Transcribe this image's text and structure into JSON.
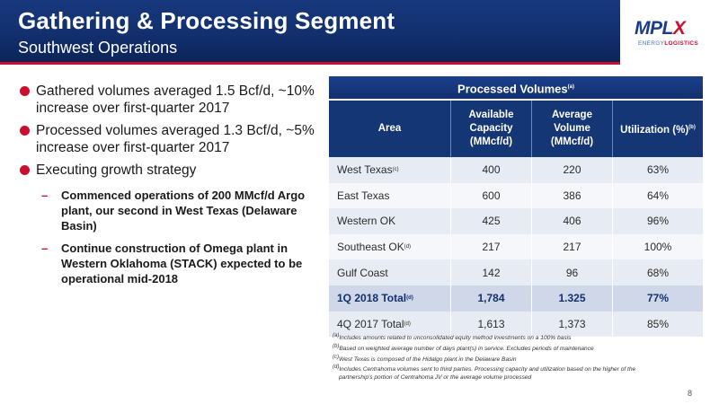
{
  "header": {
    "title": "Gathering & Processing Segment",
    "subtitle": "Southwest Operations",
    "logo": {
      "word_main": "MPL",
      "word_x": "X",
      "sub_light": "ENERGY",
      "sub_bold": "LOGISTICS"
    }
  },
  "bullets": [
    {
      "text": "Gathered volumes averaged 1.5 Bcf/d, ~10% increase over first-quarter 2017"
    },
    {
      "text": "Processed volumes averaged 1.3 Bcf/d, ~5% increase over first-quarter 2017"
    },
    {
      "text": "Executing growth strategy"
    }
  ],
  "sub_bullets": [
    {
      "text": "Commenced operations of 200 MMcf/d Argo plant, our second in West Texas (Delaware Basin)"
    },
    {
      "text": "Continue construction of Omega plant in Western Oklahoma (STACK) expected to be operational mid-2018"
    }
  ],
  "table": {
    "title": "Processed Volumes",
    "title_note": "(a)",
    "headers": [
      {
        "label": "Area",
        "note": ""
      },
      {
        "label": "Available Capacity (MMcf/d)",
        "note": ""
      },
      {
        "label": "Average Volume (MMcf/d)",
        "note": ""
      },
      {
        "label": "Utilization (%)",
        "note": "(b)"
      }
    ],
    "rows": [
      {
        "area": "West Texas",
        "note": "(c)",
        "capacity": "400",
        "volume": "220",
        "utilization": "63%"
      },
      {
        "area": "East Texas",
        "note": "",
        "capacity": "600",
        "volume": "386",
        "utilization": "64%"
      },
      {
        "area": "Western OK",
        "note": "",
        "capacity": "425",
        "volume": "406",
        "utilization": "96%"
      },
      {
        "area": "Southeast OK",
        "note": "(d)",
        "capacity": "217",
        "volume": "217",
        "utilization": "100%"
      },
      {
        "area": "Gulf Coast",
        "note": "",
        "capacity": "142",
        "volume": "96",
        "utilization": "68%"
      },
      {
        "area": "1Q 2018 Total",
        "note": "(d)",
        "capacity": "1,784",
        "volume": "1.325",
        "utilization": "77%"
      },
      {
        "area": "4Q 2017 Total",
        "note": "(d)",
        "capacity": "1,613",
        "volume": "1,373",
        "utilization": "85%"
      }
    ]
  },
  "footnotes": [
    {
      "mark": "(a)",
      "text": "Includes amounts related to unconsolidated equity method investments on a 100% basis"
    },
    {
      "mark": "(b)",
      "text": "Based on weighted average number of days plant(s) in service.  Excludes periods of maintenance"
    },
    {
      "mark": "(c)",
      "text": "West Texas is composed of the Hidalgo plant in the Delaware Basin"
    },
    {
      "mark": "(d)",
      "text": "Includes Centrahoma volumes sent to third parties. Processing capacity and utilization based on the higher of the"
    },
    {
      "mark": "",
      "text": "partnership's portion of Centrahoma JV or the average volume processed"
    }
  ],
  "page_number": "8",
  "colors": {
    "navy": "#12306e",
    "red": "#c8102e",
    "row_light": "#e7ebf3",
    "row_total": "#cfd7e8"
  }
}
